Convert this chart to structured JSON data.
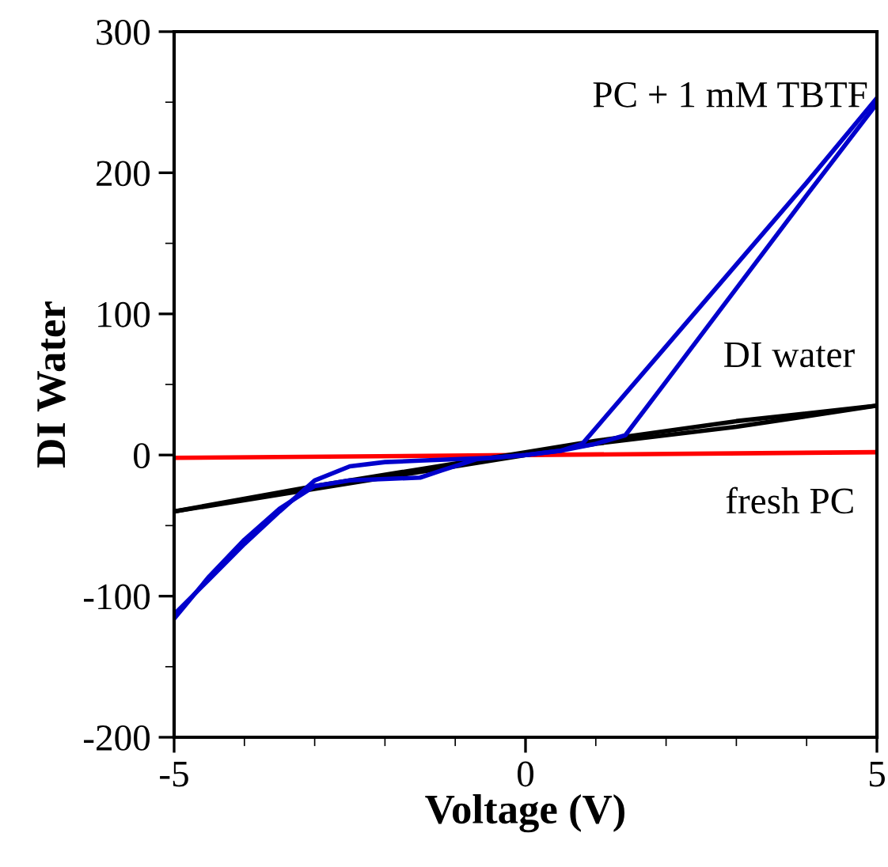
{
  "chart_data": {
    "type": "line",
    "xlabel": "Voltage (V)",
    "ylabel": "DI Water",
    "xlim": [
      -5,
      5
    ],
    "ylim": [
      -200,
      300
    ],
    "xticks": [
      -5,
      0,
      5
    ],
    "yticks": [
      -200,
      -100,
      0,
      100,
      200,
      300
    ],
    "grid": false,
    "legend": false,
    "marker": "none",
    "line_style": "solid",
    "series": [
      {
        "name": "fresh PC",
        "color": "#ff0000",
        "x": [
          -5,
          5
        ],
        "values": [
          -2,
          2
        ]
      },
      {
        "name": "DI water",
        "color": "#000000",
        "x": [
          -5,
          -3,
          -1,
          0,
          1,
          3,
          5
        ],
        "values": [
          -40,
          -24,
          -8,
          0,
          8,
          20,
          35
        ]
      },
      {
        "color": "#000000",
        "x": [
          -5,
          -3,
          -1,
          0,
          1,
          3,
          5
        ],
        "values": [
          -40,
          -22,
          -6,
          2,
          10,
          24,
          35
        ]
      },
      {
        "color": "#0000cc",
        "x": [
          -5,
          -4.5,
          -4,
          -3.5,
          -3,
          -2.5,
          -2,
          -1.5,
          -1.2,
          -0.7,
          0,
          0.5,
          1.0,
          1.42,
          2,
          3,
          4,
          5
        ],
        "values": [
          -116,
          -86,
          -60,
          -38,
          -22,
          -18,
          -17,
          -16,
          -11,
          -3,
          0,
          3,
          8,
          14,
          52,
          118,
          184,
          249
        ]
      },
      {
        "name": "PC + 1 mM TBTF",
        "color": "#0000cc",
        "x": [
          -5,
          -4.5,
          -4,
          -3.5,
          -3,
          -2.5,
          -2,
          -1.5,
          -1,
          -0.5,
          0,
          0.5,
          0.81,
          2,
          3,
          4,
          5
        ],
        "values": [
          -113,
          -88,
          -63,
          -40,
          -18,
          -8,
          -5,
          -4,
          -3,
          -2,
          0,
          3,
          8,
          77,
          135,
          193,
          253
        ]
      }
    ]
  }
}
